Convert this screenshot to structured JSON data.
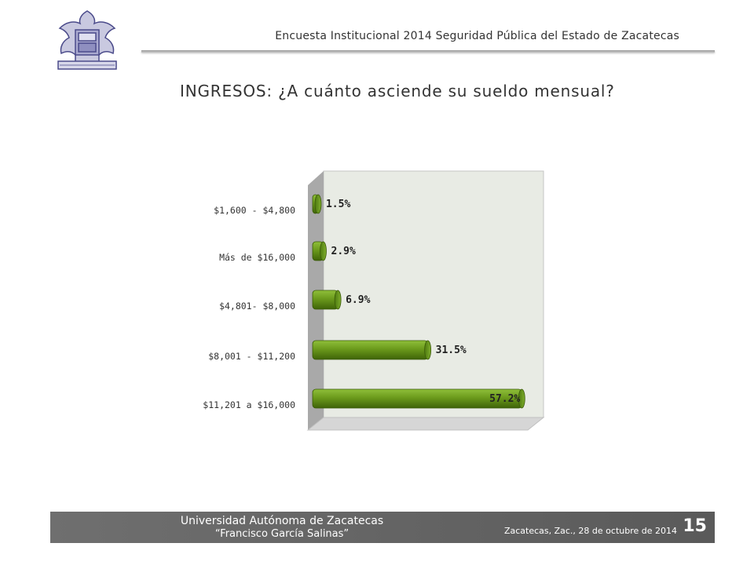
{
  "header": {
    "title": "Encuesta Institucional 2014 Seguridad Pública del Estado de Zacatecas"
  },
  "slide": {
    "title": "INGRESOS: ¿A cuánto asciende su sueldo mensual?"
  },
  "chart_data": {
    "type": "bar",
    "orientation": "horizontal",
    "style": "3d",
    "categories": [
      "$1,600 - $4,800",
      "Más de $16,000",
      "$4,801- $8,000",
      "$8,001 - $11,200",
      "$11,201 a $16,000"
    ],
    "values": [
      1.5,
      2.9,
      6.9,
      31.5,
      57.2
    ],
    "data_labels": [
      "1.5%",
      "2.9%",
      "6.9%",
      "31.5%",
      "57.2%"
    ],
    "xlim": [
      0,
      58
    ],
    "grid": false,
    "bar_color": "#5a8a10"
  },
  "footer": {
    "university": "Universidad Autónoma de Zacatecas",
    "subtitle": "“Francisco García Salinas”",
    "date": "Zacatecas, Zac., 28 de octubre de 2014",
    "page": "15"
  }
}
